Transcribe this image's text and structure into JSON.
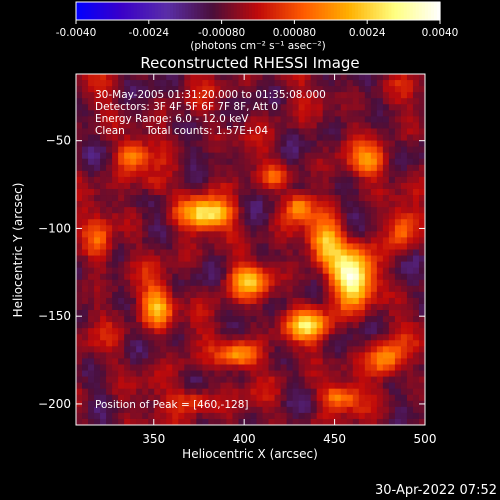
{
  "colorbar": {
    "tick_labels": [
      "-0.0040",
      "-0.0024",
      "-0.00080",
      "0.00080",
      "0.0024",
      "0.0040"
    ],
    "units": "(photons cm⁻² s⁻¹ asec⁻²)",
    "range": [
      -0.004,
      0.004
    ],
    "colormap": [
      "#0000ff",
      "#3a00c8",
      "#5a2ea8",
      "#4a0e3a",
      "#c00a0a",
      "#ff5a00",
      "#ffb000",
      "#ffff80",
      "#ffffff"
    ]
  },
  "info": {
    "line1": "30-May-2005 01:31:20.000 to 01:35:08.000",
    "line2": "Detectors: 3F 4F 5F 6F 7F 8F, Att 0",
    "line3": "Energy Range: 6.0 - 12.0 keV",
    "method": "Clean",
    "counts": "Total counts: 1.57E+04",
    "peak": "Position of Peak = [460,-128]"
  },
  "footer": {
    "timestamp": "30-Apr-2022 07:52"
  },
  "chart_data": {
    "type": "heatmap",
    "title": "Reconstructed RHESSI Image",
    "xlabel": "Heliocentric X (arcsec)",
    "ylabel": "Heliocentric Y (arcsec)",
    "xlim": [
      307,
      500
    ],
    "ylim": [
      -212,
      -12
    ],
    "x_ticks": [
      350,
      400,
      450,
      500
    ],
    "y_ticks": [
      -50,
      -100,
      -150,
      -200
    ],
    "peak": [
      460,
      -128
    ],
    "sources": [
      {
        "x": 460,
        "y": -128,
        "amp": 0.004,
        "sx": 8,
        "sy": 11
      },
      {
        "x": 445,
        "y": -108,
        "amp": 0.003,
        "sx": 7,
        "sy": 9
      },
      {
        "x": 380,
        "y": -92,
        "amp": 0.0034,
        "sx": 10,
        "sy": 6
      },
      {
        "x": 352,
        "y": -145,
        "amp": 0.0028,
        "sx": 6,
        "sy": 8
      },
      {
        "x": 398,
        "y": -172,
        "amp": 0.0027,
        "sx": 7,
        "sy": 5
      },
      {
        "x": 402,
        "y": -130,
        "amp": 0.0024,
        "sx": 8,
        "sy": 6
      },
      {
        "x": 435,
        "y": -155,
        "amp": 0.0026,
        "sx": 9,
        "sy": 6
      },
      {
        "x": 478,
        "y": -175,
        "amp": 0.0024,
        "sx": 6,
        "sy": 7
      },
      {
        "x": 430,
        "y": -88,
        "amp": 0.0022,
        "sx": 5,
        "sy": 5
      },
      {
        "x": 470,
        "y": -62,
        "amp": 0.0018,
        "sx": 8,
        "sy": 6
      },
      {
        "x": 338,
        "y": -58,
        "amp": 0.002,
        "sx": 6,
        "sy": 6
      },
      {
        "x": 320,
        "y": -110,
        "amp": 0.0016,
        "sx": 5,
        "sy": 9
      },
      {
        "x": 452,
        "y": -196,
        "amp": 0.0022,
        "sx": 7,
        "sy": 5
      },
      {
        "x": 372,
        "y": -198,
        "amp": 0.0016,
        "sx": 8,
        "sy": 5
      },
      {
        "x": 488,
        "y": -100,
        "amp": 0.0016,
        "sx": 5,
        "sy": 8
      },
      {
        "x": 350,
        "y": -75,
        "amp": 0.0012,
        "sx": 5,
        "sy": 5
      },
      {
        "x": 418,
        "y": -70,
        "amp": 0.0014,
        "sx": 5,
        "sy": 4
      }
    ]
  }
}
